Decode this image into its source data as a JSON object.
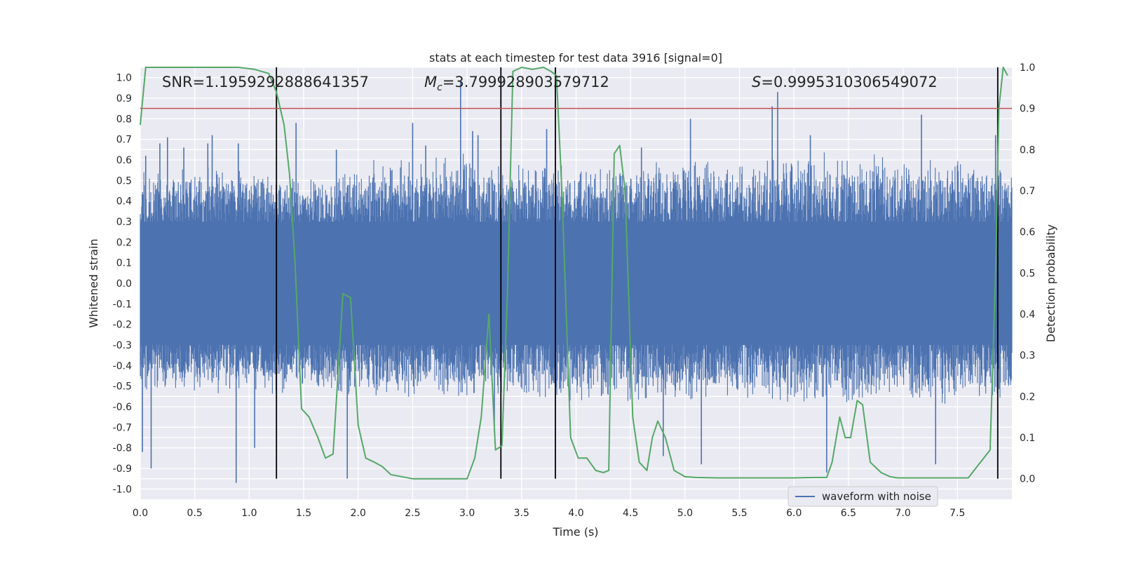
{
  "chart_data": {
    "type": "line",
    "title": "stats at each timestep for test data 3916 [signal=0]",
    "xlabel": "Time (s)",
    "ylabel": "Whitened strain",
    "y2label": "Detection probability",
    "xlim": [
      0.0,
      8.0
    ],
    "ylim": [
      -1.05,
      1.05
    ],
    "y2lim": [
      -0.05,
      1.0
    ],
    "x_ticks": [
      0.0,
      0.5,
      1.0,
      1.5,
      2.0,
      2.5,
      3.0,
      3.5,
      4.0,
      4.5,
      5.0,
      5.5,
      6.0,
      6.5,
      7.0,
      7.5
    ],
    "x_tick_labels": [
      "0.0",
      "0.5",
      "1.0",
      "1.5",
      "2.0",
      "2.5",
      "3.0",
      "3.5",
      "4.0",
      "4.5",
      "5.0",
      "5.5",
      "6.0",
      "6.5",
      "7.0",
      "7.5"
    ],
    "y_ticks": [
      1.0,
      0.9,
      0.8,
      0.7,
      0.6,
      0.5,
      0.4,
      0.3,
      0.2,
      0.1,
      0.0,
      -0.1,
      -0.2,
      -0.3,
      -0.4,
      -0.5,
      -0.6,
      -0.7,
      -0.8,
      -0.9,
      -1.0
    ],
    "y_tick_labels": [
      "1.0",
      "0.9",
      "0.8",
      "0.7",
      "0.6",
      "0.5",
      "0.4",
      "0.3",
      "0.2",
      "0.1",
      "0.0",
      "-0.1",
      "-0.2",
      "-0.3",
      "-0.4",
      "-0.5",
      "-0.6",
      "-0.7",
      "-0.8",
      "-0.9",
      "-1.0"
    ],
    "y2_ticks": [
      1.0,
      0.9,
      0.8,
      0.7,
      0.6,
      0.5,
      0.4,
      0.3,
      0.2,
      0.1,
      0.0
    ],
    "y2_tick_labels": [
      "1.0",
      "0.9",
      "0.8",
      "0.7",
      "0.6",
      "0.5",
      "0.4",
      "0.3",
      "0.2",
      "0.1",
      "0.0"
    ],
    "grid": true,
    "legend": {
      "position": "bottom-right",
      "entries": [
        "waveform with noise"
      ]
    },
    "annotations": {
      "snr": "SNR=1.1959292888641357",
      "mc_symbol": "M",
      "mc_sub": "c",
      "mc_value": "=3.799928903579712",
      "s_symbol": "S",
      "s_value": "=0.9995310306549072"
    },
    "threshold": {
      "axis": "y2",
      "value": 0.9,
      "color": "#c44e52"
    },
    "vertical_lines": [
      1.25,
      3.31,
      3.81,
      7.87
    ],
    "series": [
      {
        "name": "waveform with noise",
        "axis": "y",
        "color": "#4c72b0",
        "envelope": {
          "x": [
            0.0,
            0.5,
            1.0,
            1.25,
            1.5,
            1.7,
            2.0,
            2.5,
            3.0,
            3.3,
            3.6,
            3.8,
            4.2,
            4.5,
            5.0,
            5.5,
            6.0,
            6.5,
            7.0,
            7.5,
            8.0
          ],
          "upper": [
            0.55,
            0.58,
            0.56,
            0.58,
            0.5,
            0.55,
            0.6,
            0.62,
            0.64,
            0.58,
            0.6,
            0.6,
            0.58,
            0.6,
            0.62,
            0.6,
            0.66,
            0.65,
            0.62,
            0.63,
            0.6
          ],
          "lower": [
            -0.55,
            -0.55,
            -0.52,
            -0.55,
            -0.5,
            -0.55,
            -0.56,
            -0.58,
            -0.58,
            -0.56,
            -0.58,
            -0.6,
            -0.58,
            -0.6,
            -0.58,
            -0.6,
            -0.6,
            -0.62,
            -0.6,
            -0.6,
            -0.58
          ]
        },
        "peaks": [
          [
            0.05,
            0.62
          ],
          [
            0.18,
            0.68
          ],
          [
            0.25,
            0.71
          ],
          [
            0.4,
            0.66
          ],
          [
            0.62,
            0.68
          ],
          [
            0.66,
            0.72
          ],
          [
            0.9,
            0.68
          ],
          [
            1.43,
            0.78
          ],
          [
            1.8,
            0.65
          ],
          [
            2.5,
            0.78
          ],
          [
            2.62,
            0.67
          ],
          [
            2.94,
            0.98
          ],
          [
            3.05,
            0.74
          ],
          [
            3.1,
            0.72
          ],
          [
            3.73,
            0.75
          ],
          [
            4.6,
            0.66
          ],
          [
            5.05,
            0.8
          ],
          [
            5.8,
            0.86
          ],
          [
            5.85,
            0.93
          ],
          [
            6.15,
            0.72
          ],
          [
            7.17,
            0.82
          ],
          [
            7.85,
            0.72
          ],
          [
            0.02,
            -0.82
          ],
          [
            0.1,
            -0.9
          ],
          [
            0.88,
            -0.97
          ],
          [
            1.05,
            -0.8
          ],
          [
            1.9,
            -0.95
          ],
          [
            3.25,
            -0.72
          ],
          [
            4.8,
            -0.84
          ],
          [
            5.15,
            -0.88
          ],
          [
            6.3,
            -0.92
          ],
          [
            7.3,
            -0.88
          ]
        ]
      },
      {
        "name": "",
        "axis": "y2",
        "color": "#55a868",
        "x": [
          0.0,
          0.05,
          0.12,
          0.3,
          0.5,
          0.7,
          0.9,
          1.05,
          1.18,
          1.25,
          1.32,
          1.37,
          1.42,
          1.48,
          1.55,
          1.63,
          1.7,
          1.77,
          1.86,
          1.93,
          2.0,
          2.07,
          2.15,
          2.22,
          2.3,
          2.5,
          2.8,
          3.0,
          3.07,
          3.13,
          3.2,
          3.26,
          3.32,
          3.37,
          3.42,
          3.5,
          3.6,
          3.7,
          3.77,
          3.82,
          3.87,
          3.95,
          4.02,
          4.1,
          4.18,
          4.25,
          4.3,
          4.35,
          4.4,
          4.45,
          4.52,
          4.58,
          4.65,
          4.7,
          4.75,
          4.82,
          4.9,
          5.0,
          5.1,
          5.3,
          5.5,
          5.8,
          6.0,
          6.2,
          6.3,
          6.35,
          6.42,
          6.47,
          6.52,
          6.58,
          6.63,
          6.7,
          6.8,
          6.88,
          6.95,
          7.05,
          7.3,
          7.6,
          7.8,
          7.85,
          7.88,
          7.92,
          7.96
        ],
        "y": [
          0.86,
          1.0,
          1.0,
          1.0,
          1.0,
          1.0,
          1.0,
          0.995,
          0.985,
          0.94,
          0.86,
          0.74,
          0.53,
          0.17,
          0.15,
          0.1,
          0.05,
          0.06,
          0.45,
          0.44,
          0.13,
          0.05,
          0.04,
          0.03,
          0.01,
          0.0,
          0.0,
          0.0,
          0.05,
          0.15,
          0.4,
          0.07,
          0.08,
          0.45,
          0.99,
          1.0,
          0.995,
          1.0,
          0.99,
          0.98,
          0.7,
          0.1,
          0.05,
          0.05,
          0.02,
          0.015,
          0.02,
          0.79,
          0.81,
          0.7,
          0.15,
          0.04,
          0.02,
          0.1,
          0.14,
          0.1,
          0.02,
          0.005,
          0.003,
          0.002,
          0.002,
          0.002,
          0.002,
          0.003,
          0.003,
          0.04,
          0.15,
          0.1,
          0.1,
          0.19,
          0.18,
          0.04,
          0.015,
          0.005,
          0.002,
          0.002,
          0.002,
          0.002,
          0.07,
          0.5,
          0.9,
          1.0,
          0.98
        ]
      }
    ]
  }
}
